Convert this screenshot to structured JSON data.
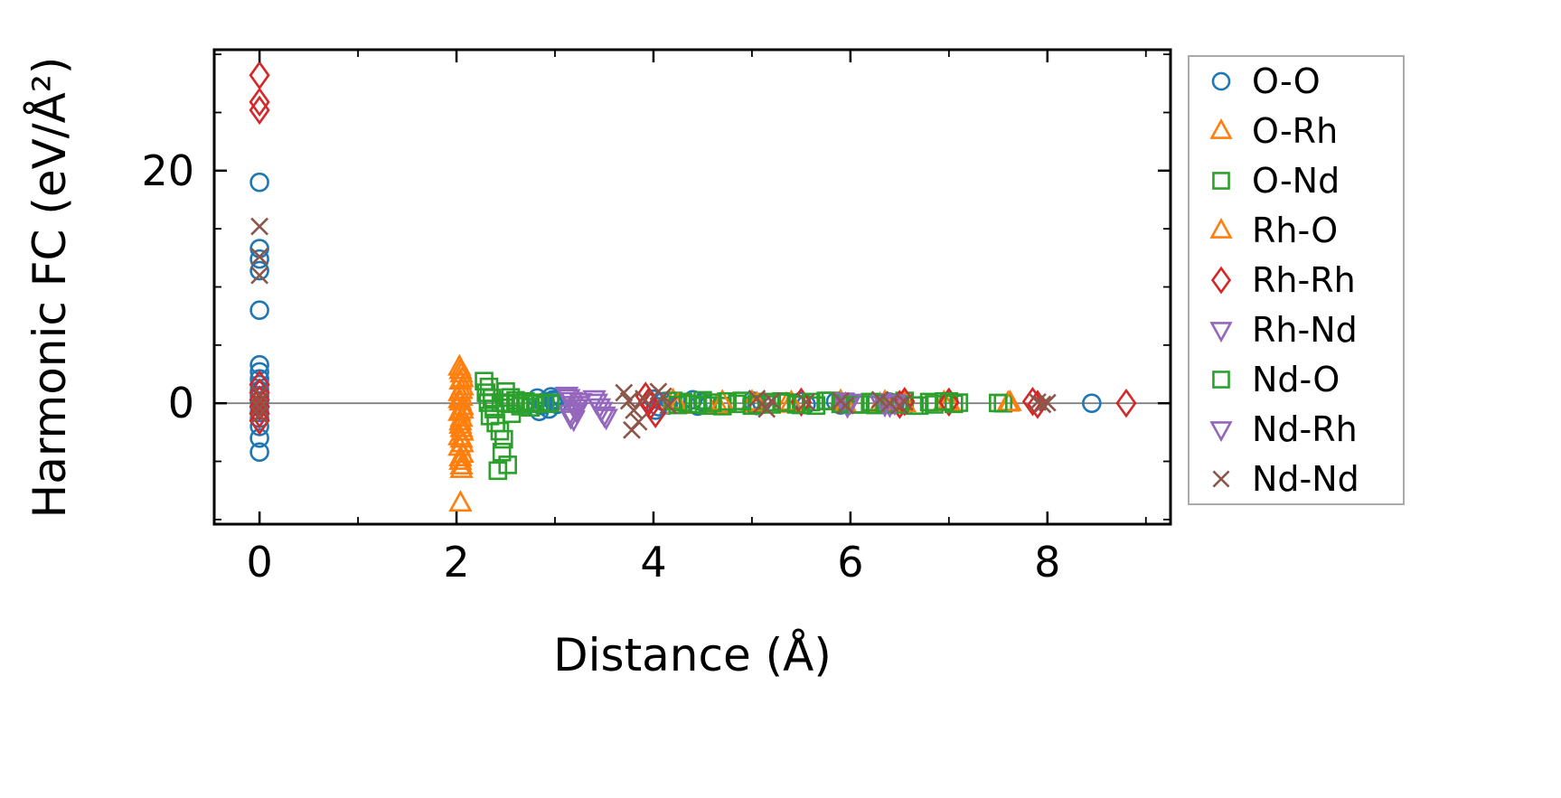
{
  "figure": {
    "background": "#ffffff",
    "frame_color": "#000000"
  },
  "chart_data": {
    "type": "scatter",
    "title": "",
    "xlabel": "Distance (Å)",
    "ylabel": "Harmonic FC (eV/Å²)",
    "xlim": [
      -0.46,
      9.25
    ],
    "ylim": [
      -10.4,
      30.4
    ],
    "xticks": [
      0,
      2,
      4,
      6,
      8
    ],
    "yticks": [
      0,
      20
    ],
    "x_minor_ticks": [
      1,
      3,
      5,
      7,
      9
    ],
    "y_minor_ticks": [
      -10,
      -5,
      5,
      10,
      15,
      25,
      30
    ],
    "grid": false,
    "zero_line_y": 0,
    "zero_line_color": "#808080",
    "legend_position": "outside-right",
    "series": [
      {
        "name": "O-O",
        "marker": "circle",
        "color": "#1f77b4",
        "points": [
          [
            0,
            19.0
          ],
          [
            0,
            13.3
          ],
          [
            0,
            12.4
          ],
          [
            0,
            11.4
          ],
          [
            0,
            8.0
          ],
          [
            0,
            3.3
          ],
          [
            0,
            2.7
          ],
          [
            0,
            2.1
          ],
          [
            0,
            1.6
          ],
          [
            0,
            1.1
          ],
          [
            0,
            0.6
          ],
          [
            0,
            0.2
          ],
          [
            0,
            -0.3
          ],
          [
            0,
            -0.8
          ],
          [
            0,
            -1.3
          ],
          [
            0,
            -2.0
          ],
          [
            0,
            -3.0
          ],
          [
            0,
            -4.2
          ],
          [
            2.82,
            0.45
          ],
          [
            2.86,
            -0.2
          ],
          [
            2.9,
            0.15
          ],
          [
            2.94,
            -0.5
          ],
          [
            2.98,
            0.3
          ],
          [
            3.02,
            -0.1
          ],
          [
            2.88,
            0.0
          ],
          [
            2.96,
            0.55
          ],
          [
            2.84,
            -0.7
          ],
          [
            3.0,
            0.2
          ],
          [
            4.0,
            0.35
          ],
          [
            4.05,
            -0.3
          ],
          [
            4.1,
            0.15
          ],
          [
            4.15,
            -0.15
          ],
          [
            4.02,
            -0.6
          ],
          [
            4.4,
            0.3
          ],
          [
            4.45,
            -0.25
          ],
          [
            4.5,
            0.1
          ],
          [
            5.0,
            0.2
          ],
          [
            5.05,
            -0.2
          ],
          [
            5.1,
            0.05
          ],
          [
            5.5,
            0.15
          ],
          [
            5.55,
            -0.1
          ],
          [
            5.85,
            0.15
          ],
          [
            5.9,
            -0.15
          ],
          [
            5.95,
            0.05
          ],
          [
            6.4,
            0.1
          ],
          [
            6.45,
            -0.1
          ],
          [
            6.5,
            0.05
          ],
          [
            7.0,
            0.1
          ],
          [
            8.45,
            0.0
          ]
        ]
      },
      {
        "name": "O-Rh",
        "marker": "triangle-up",
        "color": "#ff7f0e",
        "points": [
          [
            2.03,
            3.1
          ],
          [
            2.05,
            2.5
          ],
          [
            2.04,
            1.9
          ],
          [
            2.06,
            1.4
          ],
          [
            2.03,
            0.9
          ],
          [
            2.05,
            0.5
          ],
          [
            2.04,
            0.1
          ],
          [
            2.06,
            -0.3
          ],
          [
            2.03,
            -0.8
          ],
          [
            2.05,
            -1.3
          ],
          [
            2.04,
            -1.9
          ],
          [
            2.06,
            -2.5
          ],
          [
            2.05,
            -3.1
          ],
          [
            2.03,
            -3.8
          ],
          [
            2.06,
            -4.4
          ],
          [
            2.04,
            -5.0
          ],
          [
            2.05,
            -5.7
          ],
          [
            2.04,
            -8.6
          ],
          [
            4.2,
            0.2
          ],
          [
            4.65,
            -0.15
          ],
          [
            5.0,
            0.1
          ],
          [
            5.35,
            -0.1
          ],
          [
            5.9,
            0.15
          ],
          [
            6.3,
            -0.1
          ],
          [
            6.95,
            0.05
          ],
          [
            7.6,
            0.0
          ]
        ]
      },
      {
        "name": "O-Nd",
        "marker": "square",
        "color": "#2ca02c",
        "points": [
          [
            2.28,
            1.9
          ],
          [
            2.33,
            1.4
          ],
          [
            2.3,
            0.9
          ],
          [
            2.36,
            0.45
          ],
          [
            2.32,
            0.05
          ],
          [
            2.38,
            -0.5
          ],
          [
            2.34,
            -1.1
          ],
          [
            2.4,
            -1.7
          ],
          [
            2.44,
            -2.4
          ],
          [
            2.48,
            -3.1
          ],
          [
            2.42,
            -5.8
          ],
          [
            2.52,
            -5.3
          ],
          [
            2.46,
            -4.2
          ],
          [
            2.55,
            0.5
          ],
          [
            2.6,
            0.25
          ],
          [
            2.65,
            -0.25
          ],
          [
            2.7,
            0.15
          ],
          [
            2.75,
            -0.35
          ],
          [
            2.5,
            1.0
          ],
          [
            2.56,
            -0.9
          ],
          [
            4.2,
            0.2
          ],
          [
            4.3,
            0.1
          ],
          [
            4.45,
            -0.1
          ],
          [
            4.55,
            -0.2
          ],
          [
            4.7,
            -0.25
          ],
          [
            4.85,
            -0.05
          ],
          [
            5.0,
            -0.2
          ],
          [
            5.15,
            0.1
          ],
          [
            5.3,
            0.15
          ],
          [
            5.5,
            -0.15
          ],
          [
            5.65,
            -0.2
          ],
          [
            5.8,
            0.2
          ],
          [
            5.95,
            0.1
          ],
          [
            6.1,
            -0.1
          ],
          [
            6.25,
            -0.15
          ],
          [
            6.4,
            0.05
          ],
          [
            6.55,
            0.2
          ],
          [
            6.7,
            -0.2
          ],
          [
            6.85,
            -0.1
          ],
          [
            7.0,
            0.15
          ],
          [
            7.1,
            0.05
          ],
          [
            7.55,
            0.0
          ]
        ]
      },
      {
        "name": "Rh-O",
        "marker": "triangle-up",
        "color": "#ff7f0e",
        "points": [
          [
            2.04,
            2.8
          ],
          [
            2.06,
            2.1
          ],
          [
            2.05,
            1.1
          ],
          [
            2.03,
            0.3
          ],
          [
            2.06,
            -0.6
          ],
          [
            2.04,
            -1.6
          ],
          [
            2.05,
            -2.2
          ],
          [
            2.03,
            -2.9
          ],
          [
            2.06,
            -3.5
          ],
          [
            2.04,
            -4.7
          ],
          [
            2.05,
            -5.4
          ],
          [
            4.25,
            -0.2
          ],
          [
            4.7,
            0.1
          ],
          [
            5.05,
            -0.05
          ],
          [
            5.4,
            0.05
          ],
          [
            5.95,
            -0.1
          ],
          [
            6.35,
            0.1
          ],
          [
            6.55,
            -0.05
          ],
          [
            7.0,
            0.1
          ],
          [
            7.62,
            0.05
          ]
        ]
      },
      {
        "name": "Rh-Rh",
        "marker": "diamond",
        "color": "#d62728",
        "points": [
          [
            0,
            28.2
          ],
          [
            0,
            25.9
          ],
          [
            0,
            25.2
          ],
          [
            0,
            1.6
          ],
          [
            0,
            0.9
          ],
          [
            0,
            0.3
          ],
          [
            0,
            -0.3
          ],
          [
            0,
            -0.9
          ],
          [
            0,
            -1.5
          ],
          [
            3.92,
            0.6
          ],
          [
            3.97,
            -0.2
          ],
          [
            4.02,
            -0.9
          ],
          [
            3.95,
            0.1
          ],
          [
            5.5,
            0.1
          ],
          [
            6.5,
            -0.1
          ],
          [
            6.55,
            0.15
          ],
          [
            7.0,
            0.1
          ],
          [
            7.85,
            0.15
          ],
          [
            7.9,
            -0.1
          ],
          [
            8.8,
            0.0
          ]
        ]
      },
      {
        "name": "Rh-Nd",
        "marker": "triangle-down",
        "color": "#9467bd",
        "points": [
          [
            3.12,
            0.7
          ],
          [
            3.17,
            0.25
          ],
          [
            3.21,
            -0.35
          ],
          [
            3.15,
            -0.85
          ],
          [
            3.19,
            -1.35
          ],
          [
            3.24,
            -0.1
          ],
          [
            3.4,
            0.4
          ],
          [
            3.45,
            -0.3
          ],
          [
            3.5,
            -1.0
          ],
          [
            5.92,
            0.2
          ],
          [
            5.97,
            -0.2
          ],
          [
            6.3,
            0.15
          ],
          [
            6.4,
            -0.15
          ]
        ]
      },
      {
        "name": "Nd-O",
        "marker": "square",
        "color": "#2ca02c",
        "points": [
          [
            2.45,
            0.05
          ],
          [
            2.5,
            0.0
          ],
          [
            2.55,
            -0.05
          ],
          [
            2.6,
            0.02
          ],
          [
            2.65,
            -0.02
          ],
          [
            2.7,
            0.05
          ],
          [
            2.75,
            -0.05
          ],
          [
            2.8,
            0.0
          ],
          [
            2.85,
            0.04
          ],
          [
            2.9,
            -0.04
          ],
          [
            2.95,
            0.02
          ],
          [
            4.25,
            -0.15
          ],
          [
            4.35,
            -0.05
          ],
          [
            4.5,
            0.25
          ],
          [
            4.6,
            0.05
          ],
          [
            4.75,
            0.15
          ],
          [
            4.9,
            0.2
          ],
          [
            5.05,
            -0.1
          ],
          [
            5.2,
            -0.1
          ],
          [
            5.35,
            0.05
          ],
          [
            5.45,
            -0.1
          ],
          [
            5.6,
            0.1
          ],
          [
            5.75,
            0.2
          ],
          [
            5.9,
            -0.05
          ],
          [
            6.05,
            -0.1
          ],
          [
            6.2,
            0.1
          ],
          [
            6.35,
            -0.05
          ],
          [
            6.5,
            -0.1
          ],
          [
            6.65,
            -0.2
          ],
          [
            6.8,
            0.1
          ],
          [
            6.95,
            0.15
          ],
          [
            7.05,
            -0.05
          ],
          [
            7.5,
            0.02
          ]
        ]
      },
      {
        "name": "Nd-Rh",
        "marker": "triangle-down",
        "color": "#9467bd",
        "points": [
          [
            3.14,
            0.5
          ],
          [
            3.18,
            -0.1
          ],
          [
            3.22,
            -0.65
          ],
          [
            3.16,
            -1.15
          ],
          [
            3.26,
            0.15
          ],
          [
            3.42,
            0.1
          ],
          [
            3.47,
            -0.6
          ],
          [
            3.52,
            -1.2
          ],
          [
            6.0,
            0.1
          ],
          [
            6.35,
            -0.1
          ],
          [
            6.45,
            0.05
          ]
        ]
      },
      {
        "name": "Nd-Nd",
        "marker": "x",
        "color": "#8c564b",
        "points": [
          [
            0,
            15.2
          ],
          [
            0,
            12.6
          ],
          [
            0,
            11.0
          ],
          [
            0,
            0.8
          ],
          [
            0,
            0.2
          ],
          [
            0,
            -0.4
          ],
          [
            0,
            -1.0
          ],
          [
            3.7,
            0.9
          ],
          [
            3.75,
            0.2
          ],
          [
            3.8,
            -0.6
          ],
          [
            3.85,
            -1.6
          ],
          [
            3.78,
            -2.3
          ],
          [
            3.9,
            0.4
          ],
          [
            4.1,
            0.6
          ],
          [
            4.15,
            -0.2
          ],
          [
            4.05,
            1.0
          ],
          [
            5.05,
            0.4
          ],
          [
            5.1,
            -0.1
          ],
          [
            5.15,
            -0.5
          ],
          [
            5.2,
            0.2
          ],
          [
            5.55,
            0.1
          ],
          [
            5.9,
            0.2
          ],
          [
            5.95,
            -0.2
          ],
          [
            6.3,
            0.3
          ],
          [
            6.4,
            0.0
          ],
          [
            6.5,
            -0.2
          ],
          [
            6.55,
            0.1
          ],
          [
            7.9,
            0.1
          ],
          [
            7.95,
            -0.1
          ],
          [
            8.0,
            0.05
          ]
        ]
      }
    ],
    "legend_labels": [
      "O-O",
      "O-Rh",
      "O-Nd",
      "Rh-O",
      "Rh-Rh",
      "Rh-Nd",
      "Nd-O",
      "Nd-Rh",
      "Nd-Nd"
    ]
  }
}
